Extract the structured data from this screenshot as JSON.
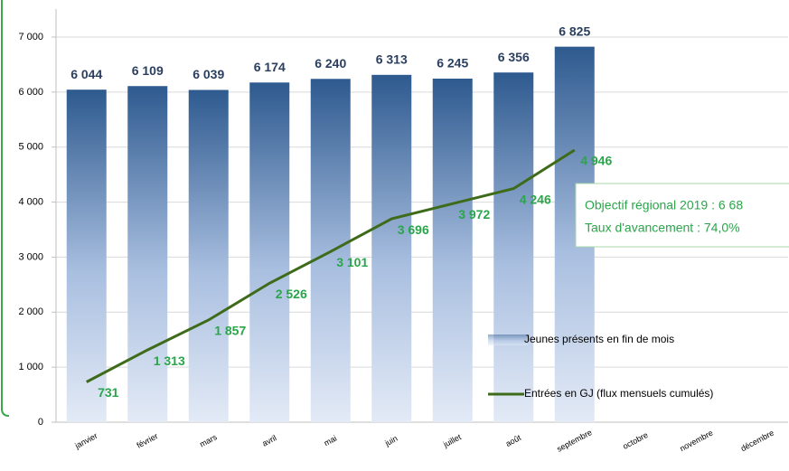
{
  "chart_data": {
    "type": "bar_line",
    "categories": [
      "janvier",
      "février",
      "mars",
      "avril",
      "mai",
      "juin",
      "juillet",
      "août",
      "septembre",
      "octobre",
      "novembre",
      "décembre"
    ],
    "series": [
      {
        "name": "Jeunes présents en fin de mois",
        "type": "bar",
        "color": "#2e5a8f",
        "values": [
          6044,
          6109,
          6039,
          6174,
          6240,
          6313,
          6245,
          6356,
          6825,
          null,
          null,
          null
        ],
        "value_labels": [
          "6 044",
          "6 109",
          "6 039",
          "6 174",
          "6 240",
          "6 313",
          "6 245",
          "6 356",
          "6 825",
          null,
          null,
          null
        ]
      },
      {
        "name": "Entrées en GJ (flux mensuels cumulés)",
        "type": "line",
        "color": "#3e6b1a",
        "label_color": "#2aa54a",
        "values": [
          731,
          1313,
          1857,
          2526,
          3101,
          3696,
          3972,
          4246,
          4946,
          null,
          null,
          null
        ],
        "value_labels": [
          "731",
          "1 313",
          "1 857",
          "2 526",
          "3 101",
          "3 696",
          "3 972",
          "4 246",
          "4 946",
          null,
          null,
          null
        ]
      }
    ],
    "ylim": [
      0,
      7000
    ],
    "yticks": [
      0,
      {
        "value": 1000,
        "label": "1 000"
      },
      {
        "value": 2000,
        "label": "2 000"
      },
      {
        "value": 3000,
        "label": "3 000"
      },
      {
        "value": 4000,
        "label": "4 000"
      },
      {
        "value": 5000,
        "label": "5 000"
      },
      {
        "value": 6000,
        "label": "6 000"
      },
      {
        "value": 7000,
        "label": "7 000"
      }
    ],
    "grid": true,
    "legend": "right",
    "annotations": [
      "Objectif régional 2019 : 6 68",
      "Taux d'avancement : 74,0%"
    ]
  }
}
